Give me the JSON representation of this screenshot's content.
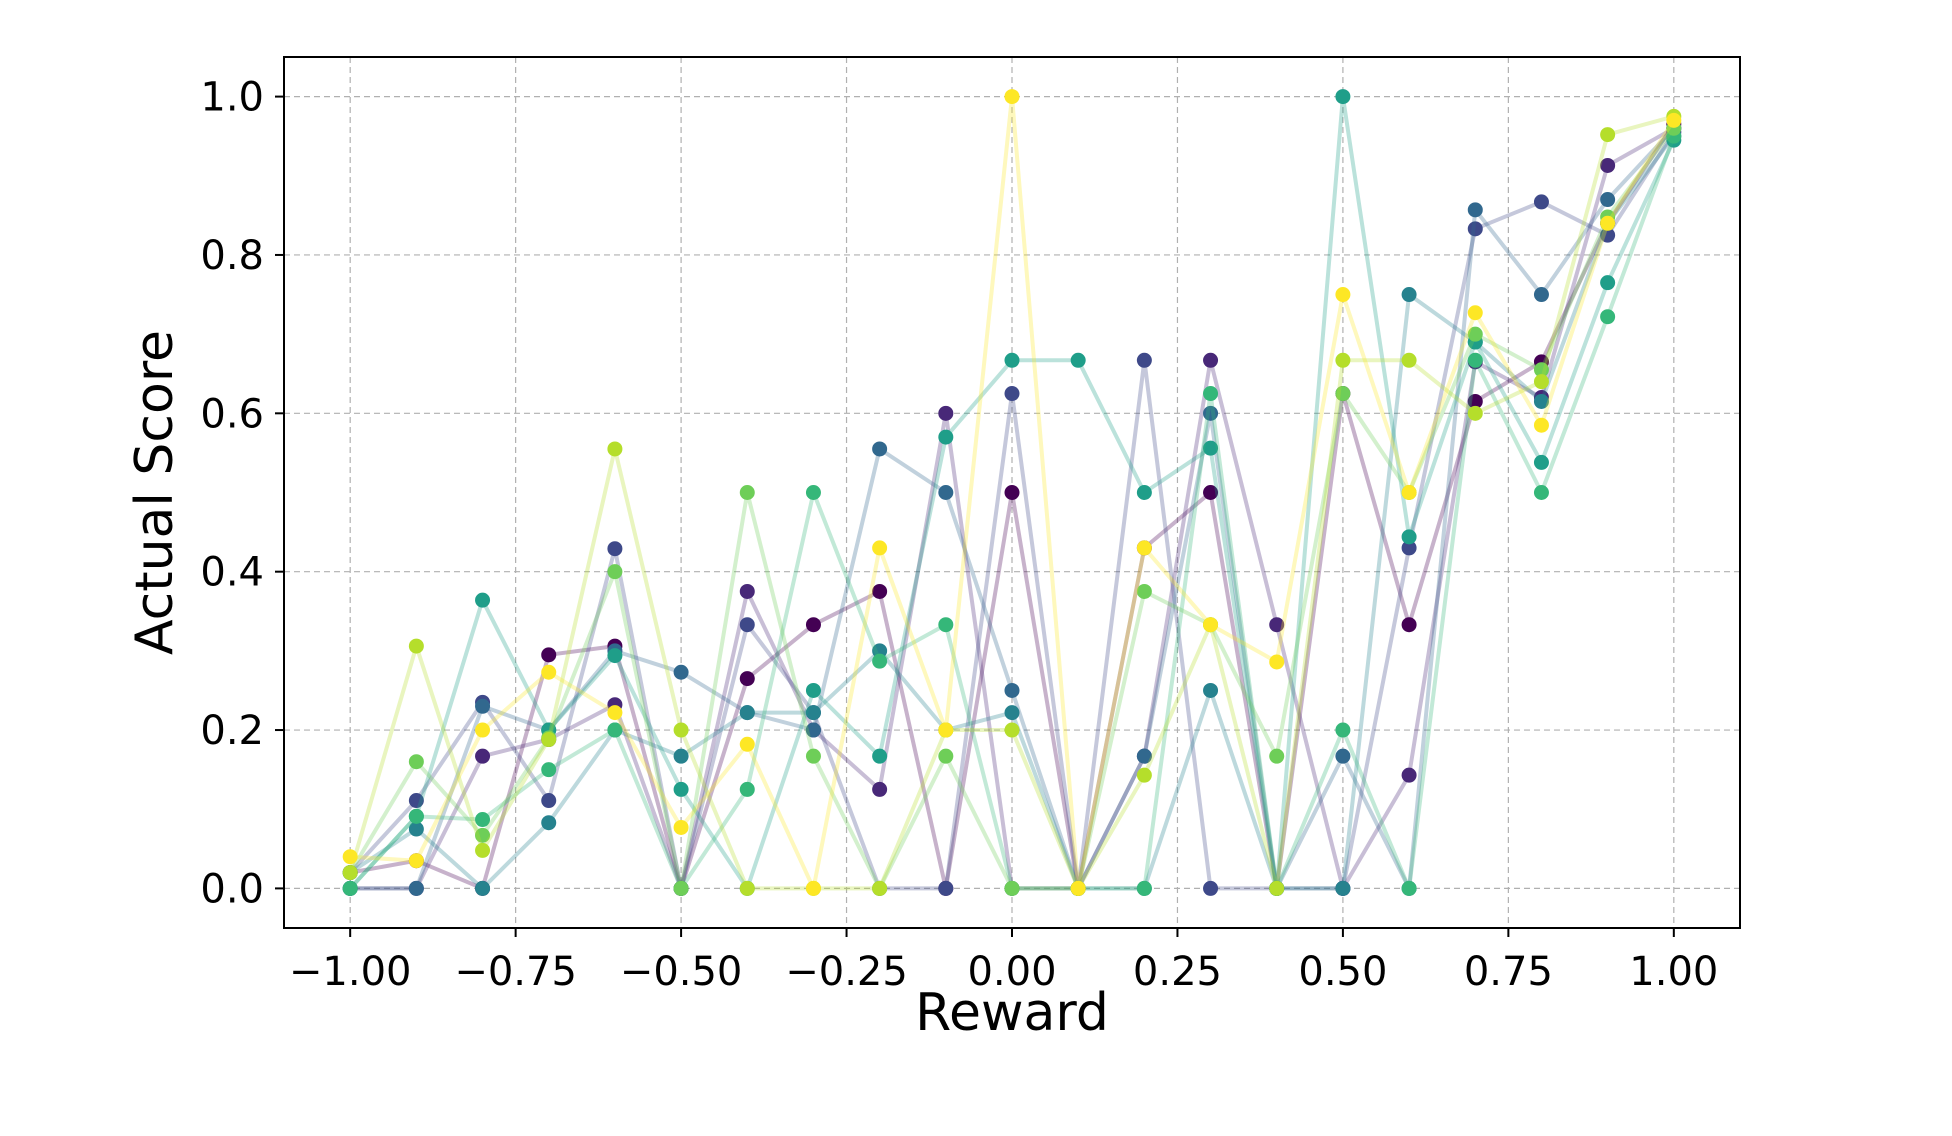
{
  "chart_data": {
    "type": "line",
    "xlabel": "Reward",
    "ylabel": "Actual Score",
    "xlim": [
      -1.1,
      1.1
    ],
    "ylim": [
      -0.05,
      1.05
    ],
    "x_ticks": [
      -1.0,
      -0.75,
      -0.5,
      -0.25,
      0.0,
      0.25,
      0.5,
      0.75,
      1.0
    ],
    "x_tick_labels": [
      "−1.00",
      "−0.75",
      "−0.50",
      "−0.25",
      "0.00",
      "0.25",
      "0.50",
      "0.75",
      "1.00"
    ],
    "y_ticks": [
      0.0,
      0.2,
      0.4,
      0.6,
      0.8,
      1.0
    ],
    "y_tick_labels": [
      "0.0",
      "0.2",
      "0.4",
      "0.6",
      "0.8",
      "1.0"
    ],
    "grid": true,
    "marker": "circle",
    "x": [
      -1.0,
      -0.9,
      -0.8,
      -0.7,
      -0.6,
      -0.5,
      -0.4,
      -0.3,
      -0.2,
      -0.1,
      0.0,
      0.1,
      0.2,
      0.3,
      0.4,
      0.5,
      0.6,
      0.7,
      0.8,
      0.9,
      1.0
    ],
    "series": [
      {
        "color": "#440154",
        "values": [
          0.02,
          0.035,
          0.0,
          0.295,
          0.306,
          0.0,
          0.265,
          0.333,
          0.375,
          0.0,
          0.5,
          0.0,
          0.43,
          0.5,
          0.0,
          0.625,
          0.333,
          0.615,
          0.665,
          0.84,
          0.965
        ]
      },
      {
        "color": "#482878",
        "values": [
          0.0,
          0.0,
          0.167,
          0.188,
          0.232,
          0.0,
          0.375,
          0.2,
          0.125,
          0.6,
          0.0,
          0.0,
          0.167,
          0.667,
          0.333,
          0.0,
          0.143,
          0.665,
          0.62,
          0.913,
          0.96
        ]
      },
      {
        "color": "#3e4989",
        "values": [
          0.02,
          0.111,
          0.235,
          0.111,
          0.429,
          0.0,
          0.333,
          0.222,
          0.0,
          0.0,
          0.625,
          0.0,
          0.667,
          0.0,
          0.0,
          0.0,
          0.43,
          0.833,
          0.867,
          0.825,
          0.955
        ]
      },
      {
        "color": "#31688e",
        "values": [
          0.0,
          0.0,
          0.23,
          0.2,
          0.3,
          0.273,
          0.222,
          0.2,
          0.555,
          0.5,
          0.25,
          0.0,
          0.167,
          0.6,
          0.0,
          0.167,
          0.0,
          0.857,
          0.75,
          0.87,
          0.96
        ]
      },
      {
        "color": "#26828e",
        "values": [
          0.02,
          0.075,
          0.0,
          0.083,
          0.2,
          0.167,
          0.222,
          0.222,
          0.3,
          0.2,
          0.222,
          0.0,
          0.0,
          0.25,
          0.0,
          0.0,
          0.75,
          0.69,
          0.615,
          0.84,
          0.95
        ]
      },
      {
        "color": "#1f9e89",
        "values": [
          0.0,
          0.091,
          0.364,
          0.2,
          0.294,
          0.125,
          0.0,
          0.25,
          0.167,
          0.57,
          0.667,
          0.667,
          0.5,
          0.556,
          0.0,
          1.0,
          0.444,
          0.69,
          0.538,
          0.765,
          0.945
        ]
      },
      {
        "color": "#35b779",
        "values": [
          0.0,
          0.091,
          0.087,
          0.15,
          0.2,
          0.0,
          0.125,
          0.5,
          0.287,
          0.333,
          0.0,
          0.0,
          0.0,
          0.625,
          0.0,
          0.2,
          0.0,
          0.667,
          0.5,
          0.722,
          0.95
        ]
      },
      {
        "color": "#6ece58",
        "values": [
          0.02,
          0.16,
          0.067,
          0.19,
          0.4,
          0.0,
          0.5,
          0.167,
          0.0,
          0.167,
          0.0,
          0.0,
          0.375,
          0.333,
          0.167,
          0.625,
          0.5,
          0.7,
          0.655,
          0.848,
          0.96
        ]
      },
      {
        "color": "#b5de2b",
        "values": [
          0.02,
          0.306,
          0.048,
          0.188,
          0.555,
          0.2,
          0.0,
          0.0,
          0.0,
          0.2,
          0.2,
          0.0,
          0.143,
          0.333,
          0.0,
          0.667,
          0.667,
          0.6,
          0.64,
          0.952,
          0.975
        ]
      },
      {
        "color": "#fde725",
        "values": [
          0.04,
          0.035,
          0.2,
          0.273,
          0.222,
          0.077,
          0.182,
          0.0,
          0.43,
          0.2,
          1.0,
          0.0,
          0.43,
          0.333,
          0.286,
          0.75,
          0.5,
          0.727,
          0.585,
          0.84,
          0.97
        ]
      }
    ]
  }
}
